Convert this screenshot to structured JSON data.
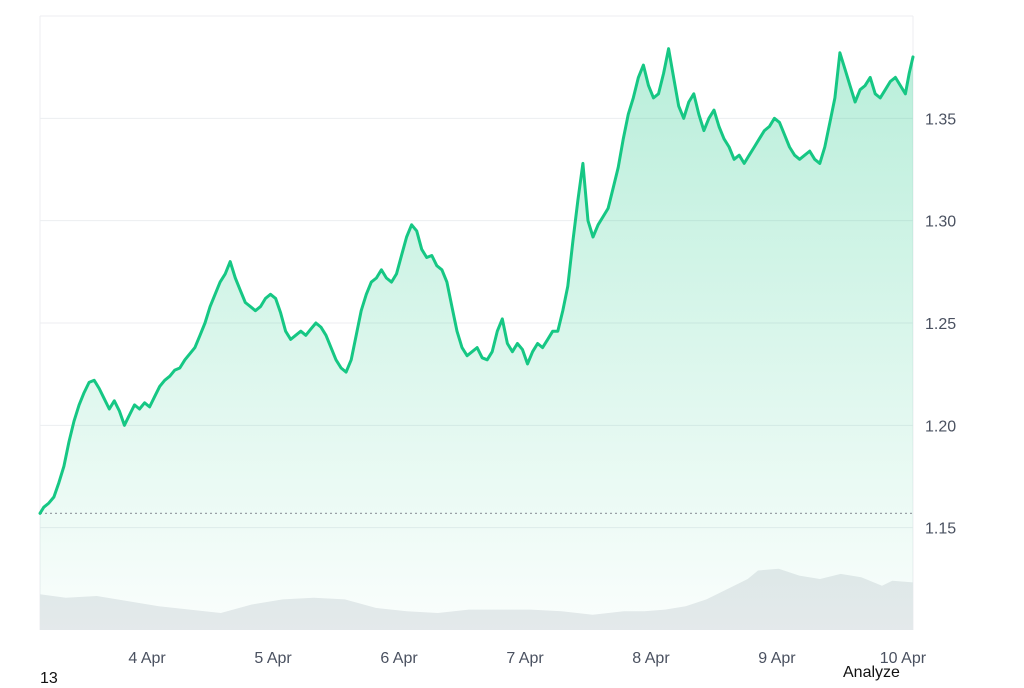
{
  "colors": {
    "line": "#16c784",
    "area_top": "#16c784",
    "volume": "#e8eaed",
    "grid": "#eceef1",
    "baseline": "#9aa0a6",
    "tick_text": "#4a5160"
  },
  "footer": {
    "left_text": "13",
    "right_text": "Analyze"
  },
  "chart_data": {
    "type": "area",
    "title": "",
    "xlabel": "",
    "ylabel": "",
    "ylim": [
      1.1,
      1.4
    ],
    "xlim": [
      3.15,
      10.08
    ],
    "x_unit": "day of April",
    "y_ticks": [
      "1.15",
      "1.20",
      "1.25",
      "1.30",
      "1.35"
    ],
    "x_ticks": [
      {
        "label": "4 Apr",
        "x": 4
      },
      {
        "label": "5 Apr",
        "x": 5
      },
      {
        "label": "6 Apr",
        "x": 6
      },
      {
        "label": "7 Apr",
        "x": 7
      },
      {
        "label": "8 Apr",
        "x": 8
      },
      {
        "label": "9 Apr",
        "x": 9
      },
      {
        "label": "10 Apr",
        "x": 10
      }
    ],
    "reference_line": 1.157,
    "series": [
      {
        "values": [
          [
            3.15,
            1.157
          ],
          [
            3.18,
            1.16
          ],
          [
            3.22,
            1.162
          ],
          [
            3.26,
            1.165
          ],
          [
            3.3,
            1.172
          ],
          [
            3.34,
            1.18
          ],
          [
            3.38,
            1.192
          ],
          [
            3.42,
            1.202
          ],
          [
            3.46,
            1.21
          ],
          [
            3.5,
            1.216
          ],
          [
            3.54,
            1.221
          ],
          [
            3.58,
            1.222
          ],
          [
            3.62,
            1.218
          ],
          [
            3.66,
            1.213
          ],
          [
            3.7,
            1.208
          ],
          [
            3.74,
            1.212
          ],
          [
            3.78,
            1.207
          ],
          [
            3.82,
            1.2
          ],
          [
            3.86,
            1.205
          ],
          [
            3.9,
            1.21
          ],
          [
            3.94,
            1.208
          ],
          [
            3.98,
            1.211
          ],
          [
            4.02,
            1.209
          ],
          [
            4.06,
            1.214
          ],
          [
            4.1,
            1.219
          ],
          [
            4.14,
            1.222
          ],
          [
            4.18,
            1.224
          ],
          [
            4.22,
            1.227
          ],
          [
            4.26,
            1.228
          ],
          [
            4.3,
            1.232
          ],
          [
            4.34,
            1.235
          ],
          [
            4.38,
            1.238
          ],
          [
            4.42,
            1.244
          ],
          [
            4.46,
            1.25
          ],
          [
            4.5,
            1.258
          ],
          [
            4.54,
            1.264
          ],
          [
            4.58,
            1.27
          ],
          [
            4.62,
            1.274
          ],
          [
            4.66,
            1.28
          ],
          [
            4.7,
            1.272
          ],
          [
            4.74,
            1.266
          ],
          [
            4.78,
            1.26
          ],
          [
            4.82,
            1.258
          ],
          [
            4.86,
            1.256
          ],
          [
            4.9,
            1.258
          ],
          [
            4.94,
            1.262
          ],
          [
            4.98,
            1.264
          ],
          [
            5.02,
            1.262
          ],
          [
            5.06,
            1.255
          ],
          [
            5.1,
            1.246
          ],
          [
            5.14,
            1.242
          ],
          [
            5.18,
            1.244
          ],
          [
            5.22,
            1.246
          ],
          [
            5.26,
            1.244
          ],
          [
            5.3,
            1.247
          ],
          [
            5.34,
            1.25
          ],
          [
            5.38,
            1.248
          ],
          [
            5.42,
            1.244
          ],
          [
            5.46,
            1.238
          ],
          [
            5.5,
            1.232
          ],
          [
            5.54,
            1.228
          ],
          [
            5.58,
            1.226
          ],
          [
            5.62,
            1.232
          ],
          [
            5.66,
            1.244
          ],
          [
            5.7,
            1.256
          ],
          [
            5.74,
            1.264
          ],
          [
            5.78,
            1.27
          ],
          [
            5.82,
            1.272
          ],
          [
            5.86,
            1.276
          ],
          [
            5.9,
            1.272
          ],
          [
            5.94,
            1.27
          ],
          [
            5.98,
            1.274
          ],
          [
            6.02,
            1.283
          ],
          [
            6.06,
            1.292
          ],
          [
            6.1,
            1.298
          ],
          [
            6.14,
            1.295
          ],
          [
            6.18,
            1.286
          ],
          [
            6.22,
            1.282
          ],
          [
            6.26,
            1.283
          ],
          [
            6.3,
            1.278
          ],
          [
            6.34,
            1.276
          ],
          [
            6.38,
            1.27
          ],
          [
            6.42,
            1.258
          ],
          [
            6.46,
            1.246
          ],
          [
            6.5,
            1.238
          ],
          [
            6.54,
            1.234
          ],
          [
            6.58,
            1.236
          ],
          [
            6.62,
            1.238
          ],
          [
            6.66,
            1.233
          ],
          [
            6.7,
            1.232
          ],
          [
            6.74,
            1.236
          ],
          [
            6.78,
            1.246
          ],
          [
            6.82,
            1.252
          ],
          [
            6.86,
            1.24
          ],
          [
            6.9,
            1.236
          ],
          [
            6.94,
            1.24
          ],
          [
            6.98,
            1.237
          ],
          [
            7.02,
            1.23
          ],
          [
            7.06,
            1.236
          ],
          [
            7.1,
            1.24
          ],
          [
            7.14,
            1.238
          ],
          [
            7.18,
            1.242
          ],
          [
            7.22,
            1.246
          ],
          [
            7.26,
            1.246
          ],
          [
            7.3,
            1.256
          ],
          [
            7.34,
            1.268
          ],
          [
            7.38,
            1.29
          ],
          [
            7.42,
            1.31
          ],
          [
            7.46,
            1.328
          ],
          [
            7.5,
            1.3
          ],
          [
            7.54,
            1.292
          ],
          [
            7.58,
            1.298
          ],
          [
            7.62,
            1.302
          ],
          [
            7.66,
            1.306
          ],
          [
            7.7,
            1.316
          ],
          [
            7.74,
            1.326
          ],
          [
            7.78,
            1.34
          ],
          [
            7.82,
            1.352
          ],
          [
            7.86,
            1.36
          ],
          [
            7.9,
            1.37
          ],
          [
            7.94,
            1.376
          ],
          [
            7.98,
            1.366
          ],
          [
            8.02,
            1.36
          ],
          [
            8.06,
            1.362
          ],
          [
            8.1,
            1.372
          ],
          [
            8.14,
            1.384
          ],
          [
            8.18,
            1.37
          ],
          [
            8.22,
            1.356
          ],
          [
            8.26,
            1.35
          ],
          [
            8.3,
            1.358
          ],
          [
            8.34,
            1.362
          ],
          [
            8.38,
            1.352
          ],
          [
            8.42,
            1.344
          ],
          [
            8.46,
            1.35
          ],
          [
            8.5,
            1.354
          ],
          [
            8.54,
            1.346
          ],
          [
            8.58,
            1.34
          ],
          [
            8.62,
            1.336
          ],
          [
            8.66,
            1.33
          ],
          [
            8.7,
            1.332
          ],
          [
            8.74,
            1.328
          ],
          [
            8.78,
            1.332
          ],
          [
            8.82,
            1.336
          ],
          [
            8.86,
            1.34
          ],
          [
            8.9,
            1.344
          ],
          [
            8.94,
            1.346
          ],
          [
            8.98,
            1.35
          ],
          [
            9.02,
            1.348
          ],
          [
            9.06,
            1.342
          ],
          [
            9.1,
            1.336
          ],
          [
            9.14,
            1.332
          ],
          [
            9.18,
            1.33
          ],
          [
            9.22,
            1.332
          ],
          [
            9.26,
            1.334
          ],
          [
            9.3,
            1.33
          ],
          [
            9.34,
            1.328
          ],
          [
            9.38,
            1.336
          ],
          [
            9.42,
            1.348
          ],
          [
            9.46,
            1.36
          ],
          [
            9.5,
            1.382
          ],
          [
            9.54,
            1.374
          ],
          [
            9.58,
            1.366
          ],
          [
            9.62,
            1.358
          ],
          [
            9.66,
            1.364
          ],
          [
            9.7,
            1.366
          ],
          [
            9.74,
            1.37
          ],
          [
            9.78,
            1.362
          ],
          [
            9.82,
            1.36
          ],
          [
            9.86,
            1.364
          ],
          [
            9.9,
            1.368
          ],
          [
            9.94,
            1.37
          ],
          [
            9.98,
            1.366
          ],
          [
            10.02,
            1.362
          ],
          [
            10.05,
            1.372
          ],
          [
            10.08,
            1.38
          ]
        ]
      }
    ],
    "volume": {
      "values": [
        [
          3.15,
          0.42
        ],
        [
          3.4,
          0.38
        ],
        [
          3.7,
          0.4
        ],
        [
          4.0,
          0.34
        ],
        [
          4.3,
          0.28
        ],
        [
          4.6,
          0.24
        ],
        [
          4.9,
          0.2
        ],
        [
          5.2,
          0.3
        ],
        [
          5.5,
          0.36
        ],
        [
          5.8,
          0.38
        ],
        [
          6.1,
          0.36
        ],
        [
          6.4,
          0.26
        ],
        [
          6.7,
          0.22
        ],
        [
          7.0,
          0.2
        ],
        [
          7.3,
          0.24
        ],
        [
          7.6,
          0.24
        ],
        [
          7.9,
          0.24
        ],
        [
          8.2,
          0.22
        ],
        [
          8.5,
          0.18
        ],
        [
          8.8,
          0.22
        ],
        [
          9.0,
          0.22
        ],
        [
          9.2,
          0.24
        ],
        [
          9.4,
          0.28
        ],
        [
          9.6,
          0.36
        ],
        [
          9.8,
          0.48
        ],
        [
          10.0,
          0.6
        ],
        [
          10.1,
          0.7
        ],
        [
          10.3,
          0.72
        ],
        [
          10.5,
          0.64
        ],
        [
          10.7,
          0.6
        ],
        [
          10.9,
          0.66
        ],
        [
          11.1,
          0.62
        ],
        [
          11.3,
          0.52
        ],
        [
          11.4,
          0.58
        ],
        [
          11.6,
          0.56
        ]
      ]
    }
  }
}
